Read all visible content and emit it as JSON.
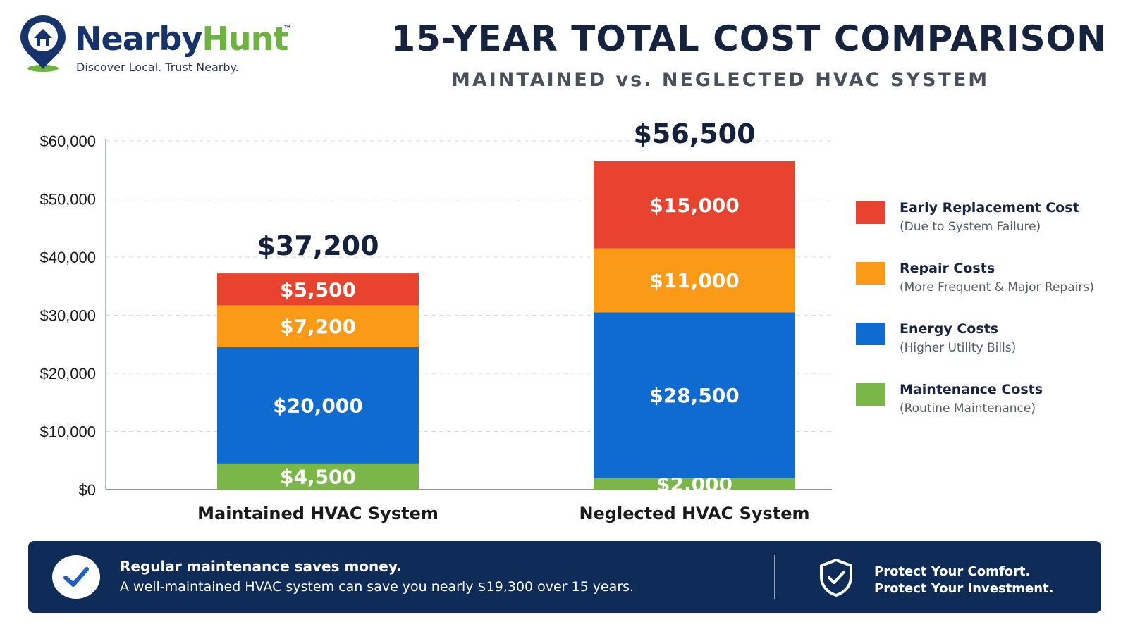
{
  "brand": {
    "name_part1": "Nearby",
    "name_part2": "Hunt",
    "trademark": "™",
    "tagline": "Discover Local. Trust Nearby.",
    "icon": "house-location-pin-icon",
    "colors": {
      "navy": "#16336b",
      "green": "#6cb33f"
    }
  },
  "header": {
    "title": "15-YEAR TOTAL COST COMPARISON",
    "subtitle": "MAINTAINED vs. NEGLECTED HVAC SYSTEM"
  },
  "chart_data": {
    "type": "bar",
    "stacked": true,
    "categories": [
      "Maintained HVAC System",
      "Neglected HVAC System"
    ],
    "series": [
      {
        "name": "Maintenance Costs",
        "values": [
          4500,
          2000
        ],
        "labels": [
          "$4,500",
          "$2,000"
        ],
        "color": "#7ab648"
      },
      {
        "name": "Energy Costs",
        "values": [
          20000,
          28500
        ],
        "labels": [
          "$20,000",
          "$28,500"
        ],
        "color": "#0f6bd0"
      },
      {
        "name": "Repair Costs",
        "values": [
          7200,
          11000
        ],
        "labels": [
          "$7,200",
          "$11,000"
        ],
        "color": "#fb9a16"
      },
      {
        "name": "Early Replacement Cost",
        "values": [
          5500,
          15000
        ],
        "labels": [
          "$5,500",
          "$15,000"
        ],
        "color": "#e8432e"
      }
    ],
    "totals": [
      37200,
      56500
    ],
    "total_labels": [
      "$37,200",
      "$56,500"
    ],
    "ylim": [
      0,
      60000
    ],
    "yticks": [
      0,
      10000,
      20000,
      30000,
      40000,
      50000,
      60000
    ],
    "ytick_labels": [
      "$0",
      "$10,000",
      "$20,000",
      "$30,000",
      "$40,000",
      "$50,000",
      "$60,000"
    ],
    "grid": true,
    "legend_position": "right"
  },
  "legend": [
    {
      "title": "Early Replacement Cost",
      "subtitle": "(Due to System Failure)",
      "color": "#e8432e"
    },
    {
      "title": "Repair Costs",
      "subtitle": "(More Frequent & Major Repairs)",
      "color": "#fb9a16"
    },
    {
      "title": "Energy Costs",
      "subtitle": "(Higher Utility Bills)",
      "color": "#0f6bd0"
    },
    {
      "title": "Maintenance Costs",
      "subtitle": "(Routine Maintenance)",
      "color": "#7ab648"
    }
  ],
  "banner": {
    "headline": "Regular maintenance saves money.",
    "body": "A well-maintained HVAC system can save you nearly $19,300 over 15 years.",
    "right_line1": "Protect Your Comfort.",
    "right_line2": "Protect Your Investment.",
    "left_icon": "checkmark-icon",
    "right_icon": "shield-check-icon",
    "background": "#0f2b57"
  }
}
